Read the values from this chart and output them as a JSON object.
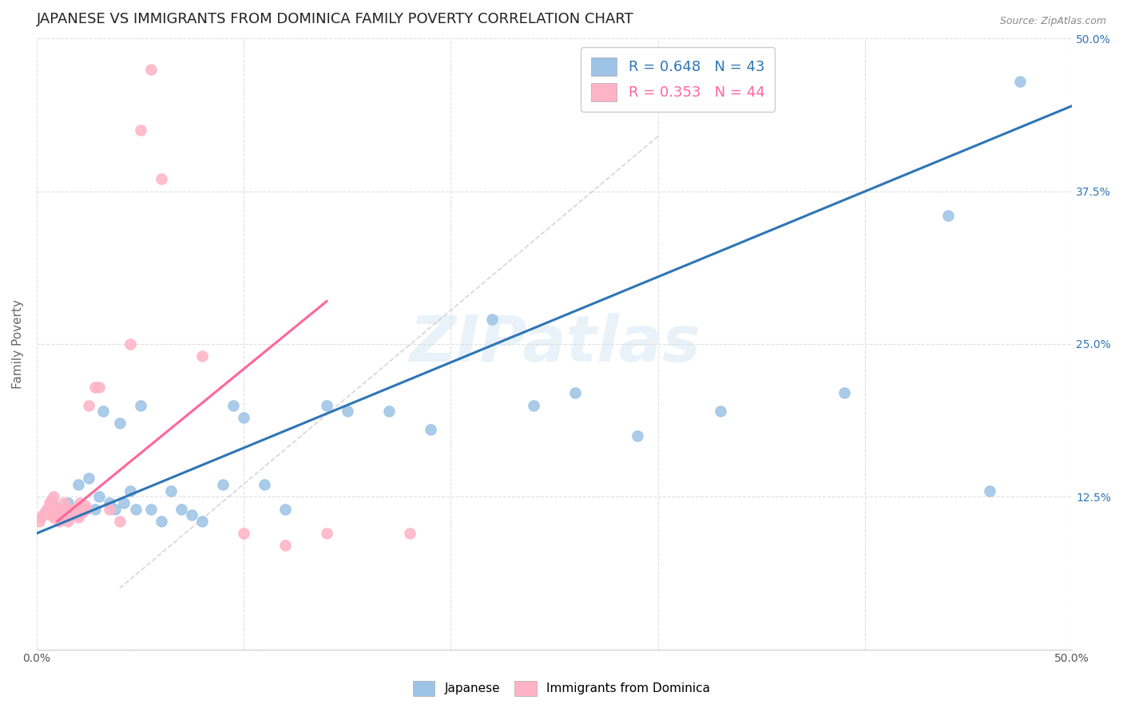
{
  "title": "JAPANESE VS IMMIGRANTS FROM DOMINICA FAMILY POVERTY CORRELATION CHART",
  "source": "Source: ZipAtlas.com",
  "ylabel": "Family Poverty",
  "xlim": [
    0.0,
    0.5
  ],
  "ylim": [
    0.0,
    0.5
  ],
  "blue_color": "#9DC3E6",
  "pink_color": "#FFB3C6",
  "blue_line_color": "#2E75B6",
  "pink_line_color": "#FF6699",
  "dashed_line_color": "#CCCCCC",
  "R_blue": 0.648,
  "N_blue": 43,
  "R_pink": 0.353,
  "N_pink": 44,
  "legend_label_blue": "Japanese",
  "legend_label_pink": "Immigrants from Dominica",
  "watermark": "ZIPatlas",
  "background_color": "#FFFFFF",
  "grid_color": "#DDDDDD",
  "title_fontsize": 13,
  "axis_label_fontsize": 11,
  "tick_fontsize": 10,
  "legend_fontsize": 13,
  "blue_line_x": [
    0.0,
    0.5
  ],
  "blue_line_y": [
    0.095,
    0.445
  ],
  "pink_line_x": [
    0.01,
    0.14
  ],
  "pink_line_y": [
    0.105,
    0.285
  ],
  "dash_line_x": [
    0.04,
    0.3
  ],
  "dash_line_y": [
    0.05,
    0.42
  ],
  "blue_x": [
    0.005,
    0.008,
    0.01,
    0.012,
    0.015,
    0.018,
    0.02,
    0.022,
    0.025,
    0.028,
    0.03,
    0.032,
    0.035,
    0.038,
    0.04,
    0.042,
    0.045,
    0.048,
    0.05,
    0.055,
    0.06,
    0.065,
    0.07,
    0.075,
    0.08,
    0.09,
    0.095,
    0.1,
    0.11,
    0.12,
    0.14,
    0.15,
    0.17,
    0.19,
    0.22,
    0.24,
    0.26,
    0.29,
    0.33,
    0.39,
    0.44,
    0.46,
    0.475
  ],
  "blue_y": [
    0.115,
    0.118,
    0.11,
    0.115,
    0.12,
    0.112,
    0.135,
    0.115,
    0.14,
    0.115,
    0.125,
    0.195,
    0.12,
    0.115,
    0.185,
    0.12,
    0.13,
    0.115,
    0.2,
    0.115,
    0.105,
    0.13,
    0.115,
    0.11,
    0.105,
    0.135,
    0.2,
    0.19,
    0.135,
    0.115,
    0.2,
    0.195,
    0.195,
    0.18,
    0.27,
    0.2,
    0.21,
    0.175,
    0.195,
    0.21,
    0.355,
    0.13,
    0.465
  ],
  "pink_x": [
    0.001,
    0.002,
    0.003,
    0.004,
    0.005,
    0.006,
    0.006,
    0.007,
    0.007,
    0.008,
    0.008,
    0.009,
    0.01,
    0.01,
    0.011,
    0.012,
    0.013,
    0.014,
    0.015,
    0.015,
    0.016,
    0.017,
    0.018,
    0.019,
    0.02,
    0.02,
    0.021,
    0.022,
    0.023,
    0.024,
    0.025,
    0.028,
    0.03,
    0.035,
    0.04,
    0.045,
    0.05,
    0.055,
    0.06,
    0.08,
    0.1,
    0.12,
    0.14,
    0.18
  ],
  "pink_y": [
    0.105,
    0.108,
    0.11,
    0.112,
    0.115,
    0.118,
    0.12,
    0.11,
    0.122,
    0.108,
    0.125,
    0.11,
    0.112,
    0.115,
    0.105,
    0.108,
    0.12,
    0.115,
    0.105,
    0.108,
    0.112,
    0.115,
    0.11,
    0.115,
    0.11,
    0.108,
    0.12,
    0.112,
    0.118,
    0.115,
    0.2,
    0.215,
    0.215,
    0.115,
    0.105,
    0.25,
    0.425,
    0.475,
    0.385,
    0.24,
    0.095,
    0.085,
    0.095,
    0.095
  ]
}
